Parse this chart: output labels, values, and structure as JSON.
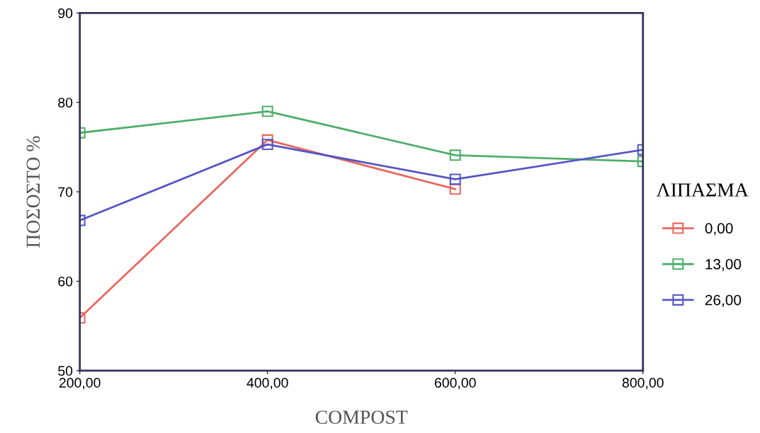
{
  "chart_data": {
    "type": "line",
    "xlabel": "COMPOST",
    "ylabel": "ΠΟΣΟΣΤΟ %",
    "legend_title": "ΛΙΠΑΣΜΑ",
    "x": [
      200,
      400,
      600,
      800
    ],
    "xlim": [
      200,
      800
    ],
    "xticks": [
      {
        "value": 200,
        "label": "200,00"
      },
      {
        "value": 400,
        "label": "400,00"
      },
      {
        "value": 600,
        "label": "600,00"
      },
      {
        "value": 800,
        "label": "800,00"
      }
    ],
    "ylim": [
      50,
      90
    ],
    "yticks": [
      50,
      60,
      70,
      80,
      90
    ],
    "marker": "square",
    "grid": false,
    "legend": "right",
    "series": [
      {
        "name": "0,00",
        "color": "#e8675f",
        "values": [
          55.9,
          75.8,
          70.3,
          null
        ]
      },
      {
        "name": "13,00",
        "color": "#4fae6a",
        "values": [
          76.6,
          79.0,
          74.1,
          73.4
        ]
      },
      {
        "name": "26,00",
        "color": "#5556c4",
        "values": [
          66.8,
          75.3,
          71.4,
          74.7
        ]
      }
    ]
  }
}
